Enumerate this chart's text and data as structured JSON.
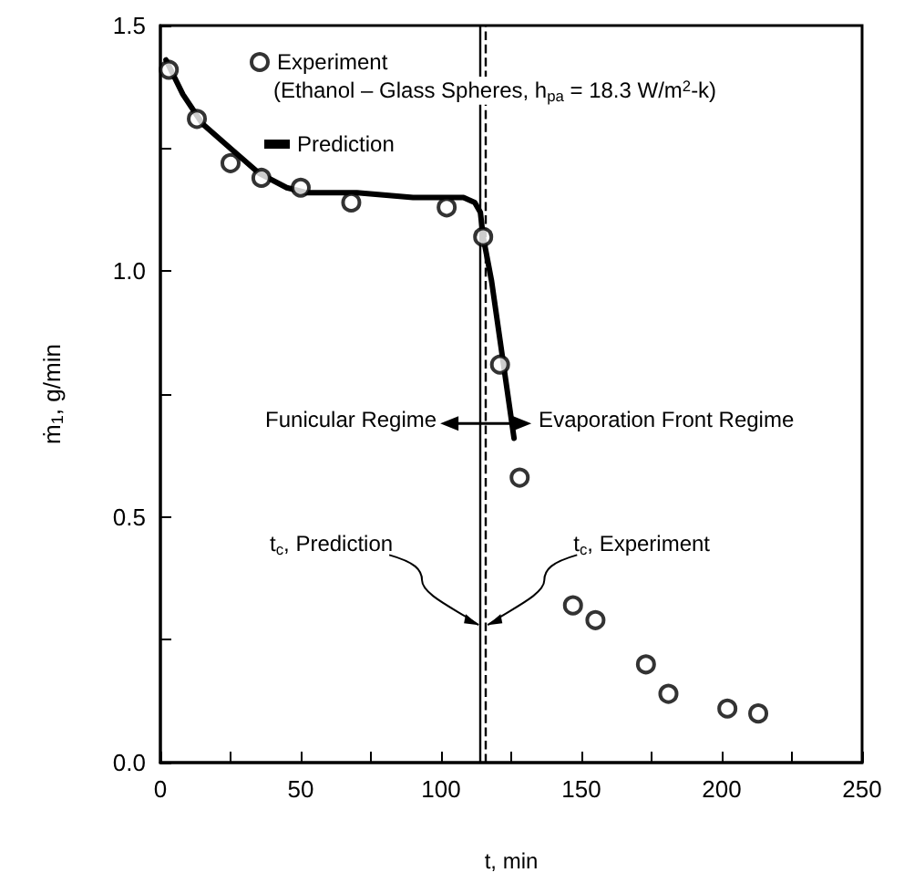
{
  "chart_data": {
    "type": "scatter",
    "xlabel": "t, min",
    "ylabel": "ṁ$_{1}$, g/min",
    "xlim": [
      0,
      250
    ],
    "ylim": [
      0,
      1.5
    ],
    "xticks": [
      0,
      {
        "value": 25,
        "label": null
      },
      50,
      {
        "value": 75,
        "label": null
      },
      100,
      {
        "value": 125,
        "label": null
      },
      150,
      {
        "value": 175,
        "label": null
      },
      200,
      {
        "value": 225,
        "label": null
      },
      250
    ],
    "yticks": [
      {
        "value": 0,
        "label": "0.0"
      },
      {
        "value": 0.25,
        "label": null
      },
      {
        "value": 0.5,
        "label": "0.5"
      },
      {
        "value": 0.75,
        "label": null
      },
      {
        "value": 1,
        "label": "1.0"
      },
      {
        "value": 1.25,
        "label": null
      },
      {
        "value": 1.5,
        "label": "1.5"
      }
    ],
    "grid": false,
    "legend": "top left",
    "series": [
      {
        "name": "Experiment",
        "marker": "circle",
        "color": "#000000",
        "x": [
          3,
          13,
          25,
          36,
          50,
          68,
          102,
          115,
          121,
          128,
          147,
          155,
          173,
          181,
          202,
          213
        ],
        "values": [
          1.41,
          1.31,
          1.22,
          1.19,
          1.17,
          1.14,
          1.13,
          1.07,
          0.81,
          0.58,
          0.32,
          0.29,
          0.2,
          0.14,
          0.11,
          0.1
        ]
      },
      {
        "name": "Prediction",
        "type": "line",
        "marker": "none",
        "line_style": "solid",
        "color": "#000000",
        "x": [
          2,
          8,
          15,
          25,
          35,
          45,
          52,
          70,
          90,
          108,
          112,
          114,
          115,
          118,
          126
        ],
        "values": [
          1.43,
          1.36,
          1.3,
          1.25,
          1.2,
          1.17,
          1.16,
          1.16,
          1.15,
          1.15,
          1.14,
          1.12,
          1.07,
          0.98,
          0.66
        ]
      }
    ],
    "ref_lines": [
      {
        "axis": "x",
        "value": 114,
        "label": "t$_{c}$, Prediction",
        "line_style": "solid"
      },
      {
        "axis": "x",
        "value": 116,
        "label": "t$_{c}$, Experiment",
        "line_style": "dashed"
      }
    ],
    "annotations": [
      "(Ethanol – Glass Spheres, h$_{pa}$ = 18.3 W/m$^{2}$-k)",
      "Funicular Regime",
      "Evaporation Front Regime"
    ]
  }
}
